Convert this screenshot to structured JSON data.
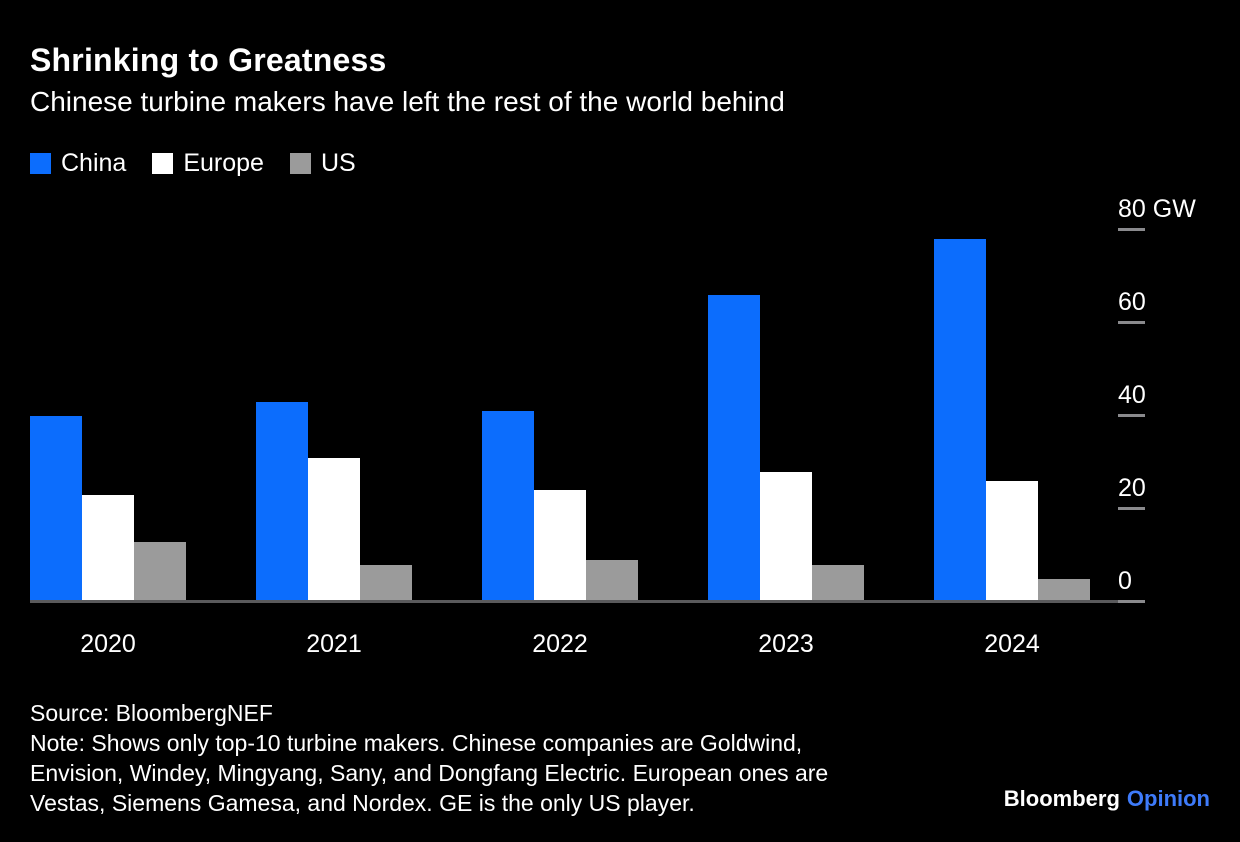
{
  "chart_data": {
    "type": "bar",
    "title": "Shrinking to Greatness",
    "subtitle": "Chinese turbine makers have left the rest of the world behind",
    "unit": "GW",
    "categories": [
      "2020",
      "2021",
      "2022",
      "2023",
      "2024"
    ],
    "series": [
      {
        "name": "China",
        "color": "#0C6DFD",
        "values": [
          40,
          43,
          41,
          66,
          78
        ]
      },
      {
        "name": "Europe",
        "color": "#FFFFFF",
        "values": [
          23,
          31,
          24,
          28,
          26
        ]
      },
      {
        "name": "US",
        "color": "#9B9B9B",
        "values": [
          13,
          8,
          9,
          8,
          5
        ]
      }
    ],
    "ylim": [
      0,
      80
    ],
    "y_ticks": [
      {
        "value": 80,
        "label": "80 GW"
      },
      {
        "value": 60,
        "label": "60"
      },
      {
        "value": 40,
        "label": "40"
      },
      {
        "value": 20,
        "label": "20"
      },
      {
        "value": 0,
        "label": "0"
      }
    ],
    "grid": false,
    "legend_position": "top-left",
    "xlabel": "",
    "ylabel": ""
  },
  "colors": {
    "background": "#000000",
    "text": "#FFFFFF",
    "axis_line": "#5A5A5C",
    "tick_mark": "#8A8A8D"
  },
  "footer": {
    "source": "Source: BloombergNEF",
    "note_lines": [
      "Note: Shows only top-10 turbine makers. Chinese companies are Goldwind,",
      "Envision, Windey, Mingyang, Sany, and Dongfang Electric. European ones are",
      "Vestas, Siemens Gamesa, and Nordex. GE is the only US player."
    ],
    "brand": {
      "name": "Bloomberg",
      "product": "Opinion",
      "product_color": "#3E7BFA"
    }
  }
}
